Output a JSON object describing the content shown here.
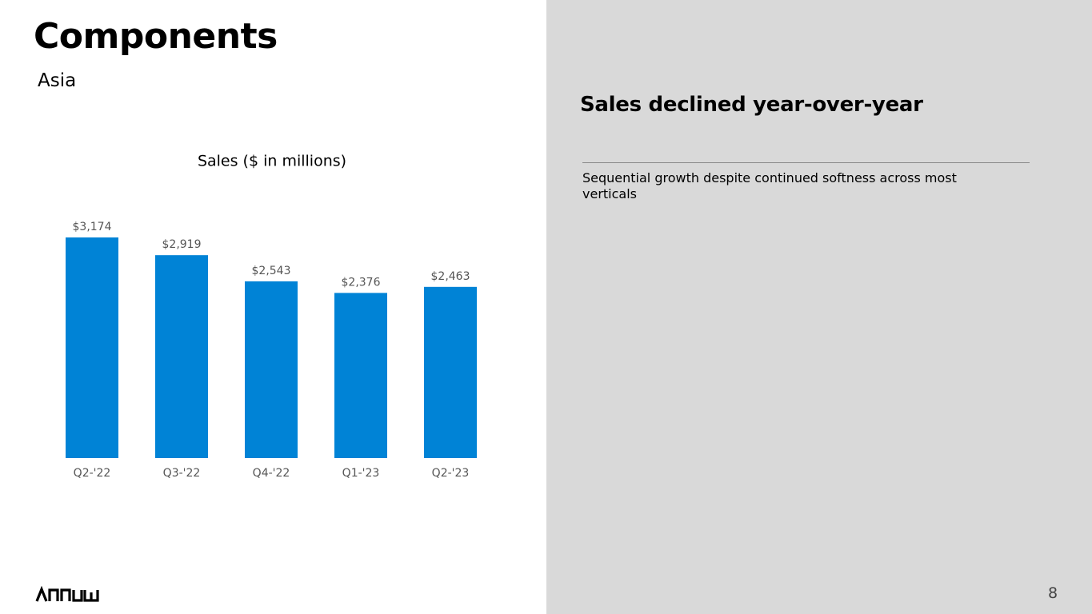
{
  "header": {
    "title": "Components",
    "subtitle": "Asia"
  },
  "chart_data": {
    "type": "bar",
    "title": "Sales ($ in millions)",
    "categories": [
      "Q2-'22",
      "Q3-'22",
      "Q4-'22",
      "Q1-'23",
      "Q2-'23"
    ],
    "values": [
      3174,
      2919,
      2543,
      2376,
      2463
    ],
    "value_labels": [
      "$3,174",
      "$2,919",
      "$2,543",
      "$2,376",
      "$2,463"
    ],
    "color": "#0083d6"
  },
  "panel": {
    "heading": "Sales declined year-over-year",
    "note": "Sequential growth despite continued softness across most verticals"
  },
  "footer": {
    "page_number": "8"
  }
}
